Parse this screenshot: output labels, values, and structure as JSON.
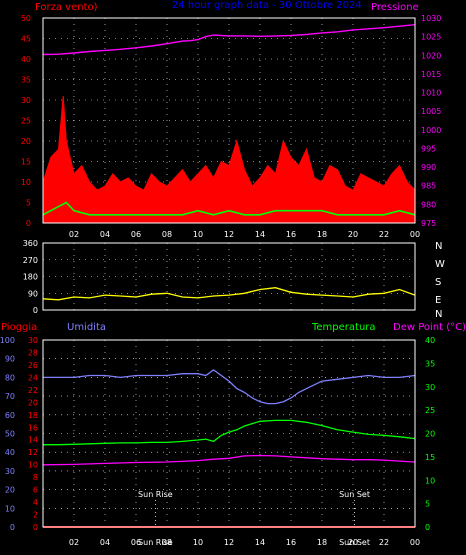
{
  "colors": {
    "background": "#000000",
    "axes": "#ffffff",
    "grid": "#ffffff",
    "wind_speed": "#ff0000",
    "wind_gust": "#ffffff",
    "wind_avg": "#00ff00",
    "pressure": "#ff00ff",
    "wind_dir": "#ffff00",
    "rain": "#ff0000",
    "humidity": "#8080ff",
    "temperature": "#00ff00",
    "dewpoint": "#ff00ff",
    "title": "#0000ff"
  },
  "header": {
    "wind_label": "Forza vento)",
    "title": "24 hour graph data - 30 Ottobre 2024",
    "pressure_label": "Pressione"
  },
  "compass": [
    "N",
    "W",
    "S",
    "E",
    "N"
  ],
  "lower_labels": {
    "rain": "Pioggia",
    "humidity": "Umidita",
    "temperature": "Temperatura",
    "dewpoint": "Dew Point (°C)",
    "sunrise": "Sun Rise",
    "sunset": "Sun Set"
  },
  "chart_data": [
    {
      "type": "line",
      "name": "wind-pressure",
      "x_ticks": [
        "02",
        "04",
        "06",
        "08",
        "10",
        "12",
        "14",
        "16",
        "18",
        "20",
        "22",
        "00"
      ],
      "y_left": {
        "min": 0,
        "max": 50,
        "ticks": [
          0,
          5,
          10,
          15,
          20,
          25,
          30,
          35,
          40,
          45,
          50
        ]
      },
      "y_right": {
        "min": 975,
        "max": 1030,
        "ticks": [
          975,
          980,
          985,
          990,
          995,
          1000,
          1005,
          1010,
          1015,
          1020,
          1025,
          1030
        ]
      },
      "series": [
        {
          "key": "pressure",
          "axis": "right",
          "x": [
            0,
            1,
            2,
            3,
            4,
            5,
            6,
            7,
            8,
            9,
            9.5,
            10,
            10.5,
            11,
            12,
            13,
            14,
            15,
            16,
            17,
            18,
            19,
            20,
            21,
            22,
            23,
            24
          ],
          "values": [
            1020.2,
            1020.3,
            1020.6,
            1021.0,
            1021.3,
            1021.6,
            1022.0,
            1022.5,
            1023.1,
            1023.8,
            1023.9,
            1024.2,
            1025.0,
            1025.4,
            1025.2,
            1025.2,
            1025.1,
            1025.2,
            1025.3,
            1025.6,
            1026.0,
            1026.3,
            1026.8,
            1027.1,
            1027.4,
            1027.8,
            1028.2
          ]
        },
        {
          "key": "wind_speed",
          "axis": "left",
          "x": [
            0,
            0.5,
            1,
            1.3,
            1.5,
            2,
            2.5,
            3,
            3.5,
            4,
            4.5,
            5,
            5.5,
            6,
            6.5,
            7,
            7.5,
            8,
            8.5,
            9,
            9.5,
            10,
            10.5,
            11,
            11.5,
            12,
            12.5,
            13,
            13.5,
            14,
            14.5,
            15,
            15.5,
            16,
            16.5,
            17,
            17.5,
            18,
            18.5,
            19,
            19.5,
            20,
            20.5,
            21,
            21.5,
            22,
            22.5,
            23,
            23.5,
            24
          ],
          "values": [
            10,
            16,
            18,
            31,
            20,
            12,
            14,
            10,
            8,
            9,
            12,
            10,
            11,
            9,
            8,
            12,
            10,
            9,
            11,
            13,
            10,
            12,
            14,
            11,
            15,
            14,
            20,
            13,
            9,
            11,
            14,
            12,
            20,
            16,
            14,
            18,
            11,
            10,
            14,
            13,
            9,
            8,
            12,
            11,
            10,
            9,
            12,
            14,
            10,
            8
          ]
        },
        {
          "key": "wind_avg",
          "axis": "left",
          "x": [
            0,
            1,
            1.5,
            2,
            3,
            4,
            5,
            6,
            7,
            8,
            9,
            10,
            11,
            12,
            13,
            14,
            15,
            16,
            17,
            18,
            19,
            20,
            21,
            22,
            23,
            24
          ],
          "values": [
            2,
            4,
            5,
            3,
            2,
            2,
            2,
            2,
            2,
            2,
            2,
            3,
            2,
            3,
            2,
            2,
            3,
            3,
            3,
            3,
            2,
            2,
            2,
            2,
            3,
            2
          ]
        }
      ]
    },
    {
      "type": "line",
      "name": "wind-direction",
      "y": {
        "min": 0,
        "max": 360,
        "ticks": [
          0,
          90,
          180,
          270,
          360
        ]
      },
      "series": [
        {
          "key": "wind_dir",
          "x": [
            0,
            1,
            2,
            3,
            4,
            5,
            6,
            7,
            8,
            9,
            10,
            11,
            12,
            13,
            14,
            15,
            16,
            17,
            18,
            19,
            20,
            21,
            22,
            23,
            24
          ],
          "values": [
            60,
            55,
            70,
            65,
            80,
            75,
            70,
            85,
            90,
            70,
            65,
            75,
            80,
            90,
            110,
            120,
            95,
            85,
            80,
            75,
            70,
            85,
            90,
            110,
            80
          ]
        }
      ]
    },
    {
      "type": "line",
      "name": "humidity-temperature",
      "y_humidity": {
        "min": 0,
        "max": 100,
        "ticks": [
          0,
          10,
          20,
          30,
          40,
          50,
          60,
          70,
          80,
          90,
          100
        ]
      },
      "y_rain": {
        "min": 0,
        "max": 30,
        "ticks": [
          0,
          2,
          4,
          6,
          8,
          10,
          12,
          14,
          16,
          18,
          20,
          22,
          24,
          26,
          28,
          30
        ]
      },
      "y_temperature": {
        "min": 0,
        "max": 40,
        "ticks": [
          0,
          5,
          10,
          15,
          20,
          25,
          30,
          35,
          40
        ]
      },
      "series": [
        {
          "key": "humidity",
          "axis": "humidity",
          "x": [
            0,
            1,
            2,
            3,
            4,
            5,
            6,
            7,
            8,
            9,
            10,
            10.5,
            11,
            11.5,
            12,
            12.5,
            13,
            13.5,
            14,
            14.5,
            15,
            15.5,
            16,
            16.5,
            17,
            18,
            19,
            20,
            21,
            22,
            23,
            24
          ],
          "values": [
            80,
            80,
            80,
            81,
            81,
            80,
            81,
            81,
            81,
            82,
            82,
            81,
            84,
            81,
            78,
            74,
            72,
            69,
            67,
            66,
            66,
            67,
            69,
            72,
            74,
            78,
            79,
            80,
            81,
            80,
            80,
            81
          ]
        },
        {
          "key": "temperature",
          "axis": "temperature",
          "x": [
            0,
            1,
            2,
            3,
            4,
            5,
            6,
            7,
            8,
            9,
            10,
            10.5,
            11,
            11.5,
            12,
            12.5,
            13,
            14,
            15,
            16,
            17,
            18,
            19,
            20,
            21,
            22,
            23,
            24
          ],
          "values": [
            17.6,
            17.6,
            17.7,
            17.8,
            17.9,
            18.0,
            18.0,
            18.1,
            18.1,
            18.3,
            18.6,
            18.8,
            18.3,
            19.6,
            20.3,
            20.8,
            21.6,
            22.6,
            22.8,
            22.8,
            22.4,
            21.7,
            20.8,
            20.3,
            19.8,
            19.6,
            19.3,
            18.9
          ]
        },
        {
          "key": "dewpoint",
          "axis": "temperature",
          "x": [
            0,
            2,
            4,
            6,
            8,
            10,
            11,
            12,
            13,
            14,
            15,
            16,
            17,
            18,
            19,
            20,
            21,
            22,
            23,
            24
          ],
          "values": [
            13.3,
            13.4,
            13.6,
            13.8,
            13.9,
            14.2,
            14.5,
            14.7,
            15.2,
            15.3,
            15.2,
            15.0,
            14.8,
            14.6,
            14.5,
            14.4,
            14.4,
            14.3,
            14.1,
            13.9
          ]
        },
        {
          "key": "rain",
          "axis": "rain",
          "x": [
            0,
            24
          ],
          "values": [
            0,
            0
          ]
        }
      ],
      "x_ticks": [
        "02",
        "04",
        "06",
        "Sun Rise",
        "08",
        "10",
        "12",
        "14",
        "16",
        "18",
        "Sun Set",
        "20",
        "22",
        "00"
      ],
      "sunrise_hour": 7.25,
      "sunset_hour": 20.1
    }
  ]
}
